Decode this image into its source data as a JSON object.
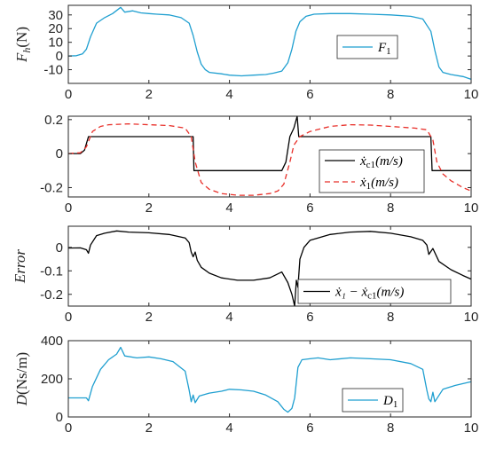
{
  "chart_data": [
    {
      "type": "line",
      "ylabel": {
        "main": "F",
        "sub": "h",
        "unit": "(N)"
      },
      "xlim": [
        0,
        10
      ],
      "ylim": [
        -20,
        37
      ],
      "xticks": [
        0,
        2,
        4,
        6,
        8,
        10
      ],
      "yticks": [
        -10,
        0,
        10,
        20,
        30
      ],
      "legend_position": "right",
      "grid": false,
      "series": [
        {
          "name": {
            "main": "F",
            "sub": "1"
          },
          "color": "#1f9fd0",
          "dash": "",
          "points": [
            [
              0,
              0
            ],
            [
              0.2,
              0.2
            ],
            [
              0.35,
              1.5
            ],
            [
              0.45,
              5
            ],
            [
              0.55,
              14
            ],
            [
              0.7,
              24
            ],
            [
              0.9,
              28
            ],
            [
              1.1,
              31
            ],
            [
              1.3,
              35.5
            ],
            [
              1.4,
              32
            ],
            [
              1.6,
              33
            ],
            [
              1.8,
              31.5
            ],
            [
              2,
              31
            ],
            [
              2.2,
              30.5
            ],
            [
              2.5,
              30
            ],
            [
              2.8,
              28
            ],
            [
              3.0,
              24
            ],
            [
              3.1,
              15
            ],
            [
              3.2,
              3
            ],
            [
              3.3,
              -6
            ],
            [
              3.4,
              -10
            ],
            [
              3.5,
              -12
            ],
            [
              3.8,
              -13
            ],
            [
              4.0,
              -14
            ],
            [
              4.3,
              -14.5
            ],
            [
              4.6,
              -14
            ],
            [
              4.9,
              -13.5
            ],
            [
              5.1,
              -12.5
            ],
            [
              5.3,
              -11
            ],
            [
              5.45,
              -5
            ],
            [
              5.55,
              5
            ],
            [
              5.65,
              18
            ],
            [
              5.75,
              25
            ],
            [
              5.9,
              29
            ],
            [
              6.1,
              30.5
            ],
            [
              6.5,
              31
            ],
            [
              7.0,
              31
            ],
            [
              7.5,
              30.5
            ],
            [
              8.0,
              30
            ],
            [
              8.5,
              29
            ],
            [
              8.8,
              27
            ],
            [
              9.0,
              18
            ],
            [
              9.1,
              4
            ],
            [
              9.2,
              -8
            ],
            [
              9.3,
              -12
            ],
            [
              9.5,
              -13.5
            ],
            [
              9.8,
              -15
            ],
            [
              10,
              -17
            ]
          ]
        }
      ]
    },
    {
      "type": "line",
      "ylabel": {
        "main": "",
        "sub": "",
        "unit": ""
      },
      "xlim": [
        0,
        10
      ],
      "ylim": [
        -0.255,
        0.22
      ],
      "xticks": [
        0,
        2,
        4,
        6,
        8,
        10
      ],
      "yticks": [
        -0.2,
        0,
        0.2
      ],
      "ytick_labels": [
        "-0.2",
        "0",
        "0.2"
      ],
      "legend_position": "right",
      "grid": false,
      "series": [
        {
          "name": {
            "main": "ẋ",
            "sub": "c1",
            "unit": "(m/s)"
          },
          "color": "#000000",
          "dash": "",
          "points": [
            [
              0,
              0
            ],
            [
              0.3,
              0
            ],
            [
              0.4,
              0.02
            ],
            [
              0.5,
              0.1
            ],
            [
              3.1,
              0.1
            ],
            [
              3.12,
              -0.1
            ],
            [
              5.3,
              -0.1
            ],
            [
              5.4,
              -0.05
            ],
            [
              5.5,
              0.1
            ],
            [
              5.6,
              0.15
            ],
            [
              5.68,
              0.22
            ],
            [
              5.72,
              0.1
            ],
            [
              9.0,
              0.1
            ],
            [
              9.03,
              -0.1
            ],
            [
              10,
              -0.1
            ]
          ]
        },
        {
          "name": {
            "main": "ẋ",
            "sub": "1",
            "unit": "(m/s)"
          },
          "color": "#e8302a",
          "dash": "6,4",
          "points": [
            [
              0,
              0
            ],
            [
              0.3,
              0.005
            ],
            [
              0.45,
              0.04
            ],
            [
              0.6,
              0.13
            ],
            [
              0.8,
              0.16
            ],
            [
              1.0,
              0.17
            ],
            [
              1.5,
              0.175
            ],
            [
              2,
              0.17
            ],
            [
              2.5,
              0.165
            ],
            [
              2.9,
              0.15
            ],
            [
              3.05,
              0.1
            ],
            [
              3.15,
              -0.05
            ],
            [
              3.3,
              -0.17
            ],
            [
              3.5,
              -0.21
            ],
            [
              3.8,
              -0.235
            ],
            [
              4.2,
              -0.245
            ],
            [
              4.6,
              -0.245
            ],
            [
              5.0,
              -0.235
            ],
            [
              5.2,
              -0.22
            ],
            [
              5.35,
              -0.18
            ],
            [
              5.5,
              -0.05
            ],
            [
              5.6,
              0.05
            ],
            [
              5.75,
              0.1
            ],
            [
              6.0,
              0.13
            ],
            [
              6.5,
              0.16
            ],
            [
              7,
              0.17
            ],
            [
              7.5,
              0.168
            ],
            [
              8,
              0.16
            ],
            [
              8.6,
              0.15
            ],
            [
              8.9,
              0.14
            ],
            [
              9.05,
              0.08
            ],
            [
              9.15,
              -0.05
            ],
            [
              9.3,
              -0.12
            ],
            [
              9.5,
              -0.16
            ],
            [
              9.8,
              -0.2
            ],
            [
              10,
              -0.22
            ]
          ]
        }
      ]
    },
    {
      "type": "line",
      "ylabel": {
        "main": "Error",
        "sub": "",
        "unit": ""
      },
      "xlim": [
        0,
        10
      ],
      "ylim": [
        -0.25,
        0.09
      ],
      "xticks": [
        0,
        2,
        4,
        6,
        8,
        10
      ],
      "yticks": [
        -0.2,
        -0.1,
        0
      ],
      "ytick_labels": [
        "-0.2",
        "-0.1",
        "0"
      ],
      "legend_position": "bottom-right",
      "grid": false,
      "series": [
        {
          "name": {
            "text": "ẋ₁ − ẋ",
            "sub": "c1",
            "unit": "(m/s)"
          },
          "color": "#000000",
          "dash": "",
          "points": [
            [
              0,
              -0.003
            ],
            [
              0.3,
              -0.002
            ],
            [
              0.45,
              -0.01
            ],
            [
              0.5,
              -0.025
            ],
            [
              0.55,
              0.01
            ],
            [
              0.7,
              0.05
            ],
            [
              0.9,
              0.06
            ],
            [
              1.2,
              0.07
            ],
            [
              1.5,
              0.065
            ],
            [
              2,
              0.062
            ],
            [
              2.5,
              0.055
            ],
            [
              2.9,
              0.04
            ],
            [
              3.0,
              0.02
            ],
            [
              3.05,
              -0.02
            ],
            [
              3.1,
              -0.04
            ],
            [
              3.15,
              -0.02
            ],
            [
              3.2,
              -0.055
            ],
            [
              3.3,
              -0.085
            ],
            [
              3.5,
              -0.11
            ],
            [
              3.8,
              -0.13
            ],
            [
              4.2,
              -0.14
            ],
            [
              4.6,
              -0.14
            ],
            [
              5.0,
              -0.13
            ],
            [
              5.3,
              -0.105
            ],
            [
              5.45,
              -0.15
            ],
            [
              5.55,
              -0.2
            ],
            [
              5.62,
              -0.25
            ],
            [
              5.66,
              -0.14
            ],
            [
              5.7,
              -0.17
            ],
            [
              5.75,
              -0.05
            ],
            [
              5.85,
              0.0
            ],
            [
              6.0,
              0.03
            ],
            [
              6.5,
              0.055
            ],
            [
              7,
              0.065
            ],
            [
              7.5,
              0.068
            ],
            [
              8,
              0.06
            ],
            [
              8.5,
              0.045
            ],
            [
              8.8,
              0.03
            ],
            [
              8.9,
              0.01
            ],
            [
              8.95,
              -0.03
            ],
            [
              9.05,
              -0.005
            ],
            [
              9.2,
              -0.06
            ],
            [
              9.5,
              -0.095
            ],
            [
              9.8,
              -0.12
            ],
            [
              10,
              -0.135
            ]
          ]
        }
      ]
    },
    {
      "type": "line",
      "ylabel": {
        "main": "D",
        "sub": "",
        "unit": "(Ns/m)"
      },
      "xlim": [
        0,
        10
      ],
      "ylim": [
        0,
        400
      ],
      "xticks": [
        0,
        2,
        4,
        6,
        8,
        10
      ],
      "yticks": [
        0,
        200,
        400
      ],
      "legend_position": "bottom-right",
      "grid": false,
      "series": [
        {
          "name": {
            "main": "D",
            "sub": "1"
          },
          "color": "#1f9fd0",
          "dash": "",
          "points": [
            [
              0,
              100
            ],
            [
              0.45,
              100
            ],
            [
              0.5,
              85
            ],
            [
              0.6,
              160
            ],
            [
              0.8,
              250
            ],
            [
              1.0,
              300
            ],
            [
              1.2,
              330
            ],
            [
              1.3,
              365
            ],
            [
              1.4,
              320
            ],
            [
              1.7,
              310
            ],
            [
              2.0,
              315
            ],
            [
              2.3,
              305
            ],
            [
              2.6,
              290
            ],
            [
              2.9,
              240
            ],
            [
              3.0,
              140
            ],
            [
              3.05,
              80
            ],
            [
              3.1,
              115
            ],
            [
              3.15,
              75
            ],
            [
              3.25,
              110
            ],
            [
              3.5,
              125
            ],
            [
              3.8,
              135
            ],
            [
              4.0,
              145
            ],
            [
              4.3,
              142
            ],
            [
              4.6,
              135
            ],
            [
              4.9,
              115
            ],
            [
              5.2,
              80
            ],
            [
              5.35,
              40
            ],
            [
              5.45,
              25
            ],
            [
              5.55,
              45
            ],
            [
              5.62,
              100
            ],
            [
              5.7,
              260
            ],
            [
              5.8,
              300
            ],
            [
              6.0,
              305
            ],
            [
              6.2,
              310
            ],
            [
              6.5,
              300
            ],
            [
              7.0,
              310
            ],
            [
              7.5,
              305
            ],
            [
              8.0,
              300
            ],
            [
              8.5,
              280
            ],
            [
              8.8,
              250
            ],
            [
              8.9,
              140
            ],
            [
              8.95,
              95
            ],
            [
              9.0,
              80
            ],
            [
              9.05,
              130
            ],
            [
              9.1,
              80
            ],
            [
              9.3,
              145
            ],
            [
              9.6,
              165
            ],
            [
              9.8,
              175
            ],
            [
              10,
              185
            ]
          ]
        }
      ]
    }
  ]
}
